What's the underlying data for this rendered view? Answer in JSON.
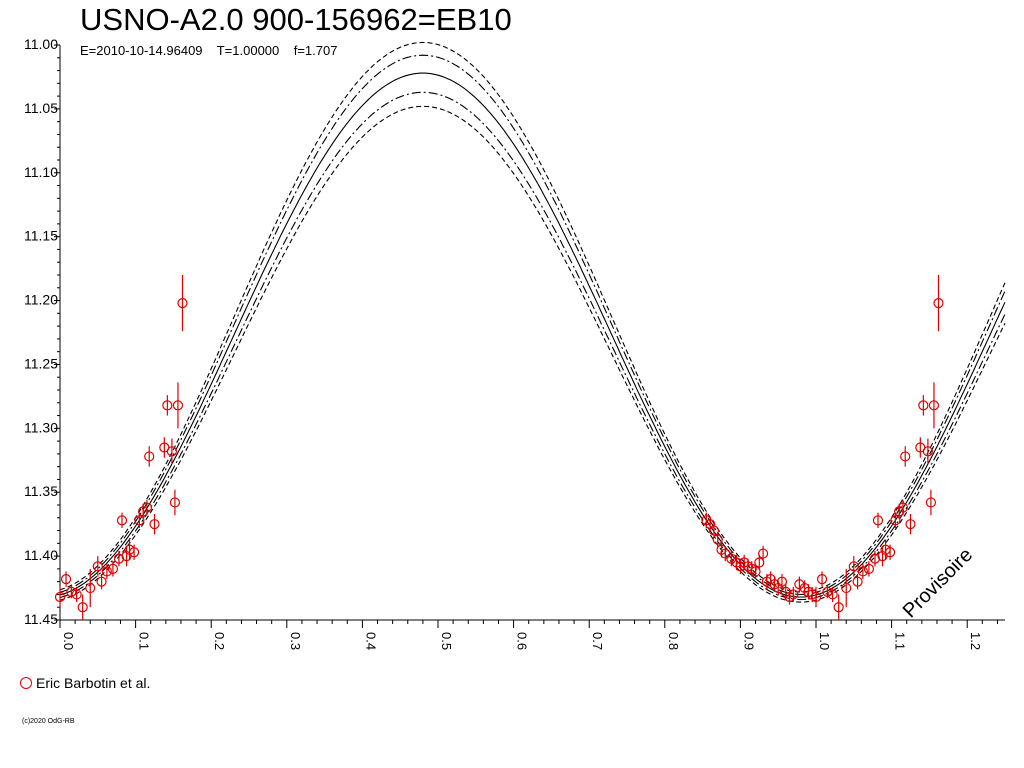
{
  "chart_data": {
    "type": "scatter",
    "title": "USNO-A2.0 900-156962=EB10",
    "subtitle": "E=2010-10-14.96409    T=1.00000    f=1.707",
    "xlabel": "",
    "ylabel": "",
    "xlim": [
      0,
      1.25
    ],
    "ylim": [
      11.0,
      11.45
    ],
    "y_inverted": true,
    "x_ticks": [
      "0.0",
      "0.1",
      "0.2",
      "0.3",
      "0.4",
      "0.5",
      "0.6",
      "0.7",
      "0.8",
      "0.9",
      "1.0",
      "1.1",
      "1.2"
    ],
    "y_ticks": [
      "11.00",
      "11.05",
      "11.10",
      "11.15",
      "11.20",
      "11.25",
      "11.30",
      "11.35",
      "11.40",
      "11.45"
    ],
    "grid": false,
    "legend_position": "bottom-left",
    "series": [
      {
        "name": "Eric Barbotin et al.",
        "color": "#e00000",
        "marker": "open-circle",
        "points": [
          {
            "x": 0.0,
            "y": 11.432,
            "err": 0.008
          },
          {
            "x": 0.008,
            "y": 11.418,
            "err": 0.006
          },
          {
            "x": 0.015,
            "y": 11.428,
            "err": 0.005
          },
          {
            "x": 0.022,
            "y": 11.43,
            "err": 0.006
          },
          {
            "x": 0.03,
            "y": 11.44,
            "err": 0.01
          },
          {
            "x": 0.04,
            "y": 11.425,
            "err": 0.015
          },
          {
            "x": 0.05,
            "y": 11.408,
            "err": 0.008
          },
          {
            "x": 0.055,
            "y": 11.42,
            "err": 0.006
          },
          {
            "x": 0.062,
            "y": 11.412,
            "err": 0.006
          },
          {
            "x": 0.07,
            "y": 11.41,
            "err": 0.006
          },
          {
            "x": 0.078,
            "y": 11.402,
            "err": 0.006
          },
          {
            "x": 0.082,
            "y": 11.372,
            "err": 0.006
          },
          {
            "x": 0.088,
            "y": 11.4,
            "err": 0.008
          },
          {
            "x": 0.092,
            "y": 11.395,
            "err": 0.008
          },
          {
            "x": 0.098,
            "y": 11.397,
            "err": 0.006
          },
          {
            "x": 0.105,
            "y": 11.372,
            "err": 0.006
          },
          {
            "x": 0.11,
            "y": 11.365,
            "err": 0.006
          },
          {
            "x": 0.115,
            "y": 11.362,
            "err": 0.006
          },
          {
            "x": 0.118,
            "y": 11.322,
            "err": 0.008
          },
          {
            "x": 0.125,
            "y": 11.375,
            "err": 0.008
          },
          {
            "x": 0.138,
            "y": 11.315,
            "err": 0.008
          },
          {
            "x": 0.142,
            "y": 11.282,
            "err": 0.008
          },
          {
            "x": 0.148,
            "y": 11.318,
            "err": 0.01
          },
          {
            "x": 0.152,
            "y": 11.358,
            "err": 0.01
          },
          {
            "x": 0.156,
            "y": 11.282,
            "err": 0.018
          },
          {
            "x": 0.162,
            "y": 11.202,
            "err": 0.022
          },
          {
            "x": 0.855,
            "y": 11.372,
            "err": 0.006
          },
          {
            "x": 0.86,
            "y": 11.375,
            "err": 0.006
          },
          {
            "x": 0.865,
            "y": 11.38,
            "err": 0.006
          },
          {
            "x": 0.87,
            "y": 11.387,
            "err": 0.006
          },
          {
            "x": 0.875,
            "y": 11.395,
            "err": 0.006
          },
          {
            "x": 0.88,
            "y": 11.398,
            "err": 0.006
          },
          {
            "x": 0.888,
            "y": 11.402,
            "err": 0.006
          },
          {
            "x": 0.895,
            "y": 11.405,
            "err": 0.006
          },
          {
            "x": 0.9,
            "y": 11.408,
            "err": 0.006
          },
          {
            "x": 0.905,
            "y": 11.405,
            "err": 0.006
          },
          {
            "x": 0.91,
            "y": 11.408,
            "err": 0.006
          },
          {
            "x": 0.915,
            "y": 11.41,
            "err": 0.006
          },
          {
            "x": 0.92,
            "y": 11.412,
            "err": 0.006
          },
          {
            "x": 0.925,
            "y": 11.405,
            "err": 0.006
          },
          {
            "x": 0.93,
            "y": 11.398,
            "err": 0.006
          },
          {
            "x": 0.935,
            "y": 11.42,
            "err": 0.006
          },
          {
            "x": 0.94,
            "y": 11.418,
            "err": 0.006
          },
          {
            "x": 0.945,
            "y": 11.422,
            "err": 0.006
          },
          {
            "x": 0.95,
            "y": 11.425,
            "err": 0.006
          },
          {
            "x": 0.955,
            "y": 11.42,
            "err": 0.006
          },
          {
            "x": 0.96,
            "y": 11.428,
            "err": 0.006
          },
          {
            "x": 0.965,
            "y": 11.432,
            "err": 0.006
          },
          {
            "x": 0.97,
            "y": 11.43,
            "err": 0.006
          },
          {
            "x": 0.978,
            "y": 11.422,
            "err": 0.006
          },
          {
            "x": 0.985,
            "y": 11.425,
            "err": 0.006
          },
          {
            "x": 0.99,
            "y": 11.428,
            "err": 0.006
          },
          {
            "x": 0.995,
            "y": 11.43,
            "err": 0.006
          },
          {
            "x": 1.0,
            "y": 11.432,
            "err": 0.008
          },
          {
            "x": 1.008,
            "y": 11.418,
            "err": 0.006
          },
          {
            "x": 1.015,
            "y": 11.428,
            "err": 0.005
          },
          {
            "x": 1.022,
            "y": 11.43,
            "err": 0.006
          },
          {
            "x": 1.03,
            "y": 11.44,
            "err": 0.01
          },
          {
            "x": 1.04,
            "y": 11.425,
            "err": 0.015
          },
          {
            "x": 1.05,
            "y": 11.408,
            "err": 0.008
          },
          {
            "x": 1.055,
            "y": 11.42,
            "err": 0.006
          },
          {
            "x": 1.062,
            "y": 11.412,
            "err": 0.006
          },
          {
            "x": 1.07,
            "y": 11.41,
            "err": 0.006
          },
          {
            "x": 1.078,
            "y": 11.402,
            "err": 0.006
          },
          {
            "x": 1.082,
            "y": 11.372,
            "err": 0.006
          },
          {
            "x": 1.088,
            "y": 11.4,
            "err": 0.008
          },
          {
            "x": 1.092,
            "y": 11.395,
            "err": 0.008
          },
          {
            "x": 1.098,
            "y": 11.397,
            "err": 0.006
          },
          {
            "x": 1.105,
            "y": 11.372,
            "err": 0.006
          },
          {
            "x": 1.11,
            "y": 11.365,
            "err": 0.006
          },
          {
            "x": 1.115,
            "y": 11.362,
            "err": 0.006
          },
          {
            "x": 1.118,
            "y": 11.322,
            "err": 0.008
          },
          {
            "x": 1.125,
            "y": 11.375,
            "err": 0.008
          },
          {
            "x": 1.138,
            "y": 11.315,
            "err": 0.008
          },
          {
            "x": 1.142,
            "y": 11.282,
            "err": 0.008
          },
          {
            "x": 1.148,
            "y": 11.318,
            "err": 0.01
          },
          {
            "x": 1.152,
            "y": 11.358,
            "err": 0.01
          },
          {
            "x": 1.156,
            "y": 11.282,
            "err": 0.018
          },
          {
            "x": 1.162,
            "y": 11.202,
            "err": 0.022
          }
        ]
      }
    ],
    "model_curves": [
      {
        "style": "solid",
        "max_mag": 11.022,
        "min_mag": 11.432,
        "phase_max": 0.48,
        "phase_min": 0.98
      },
      {
        "style": "dashdot",
        "max_mag": 11.008,
        "min_mag": 11.43,
        "phase_max": 0.48,
        "phase_min": 0.98
      },
      {
        "style": "dashdot",
        "max_mag": 11.037,
        "min_mag": 11.434,
        "phase_max": 0.48,
        "phase_min": 0.98
      },
      {
        "style": "dashed",
        "max_mag": 10.998,
        "min_mag": 11.428,
        "phase_max": 0.48,
        "phase_min": 0.98
      },
      {
        "style": "dashed",
        "max_mag": 11.048,
        "min_mag": 11.436,
        "phase_max": 0.48,
        "phase_min": 0.98
      }
    ],
    "legend": "Eric Barbotin et al.",
    "watermark": "Provisoire",
    "copyright": "(c)2020 OdG-RB"
  }
}
